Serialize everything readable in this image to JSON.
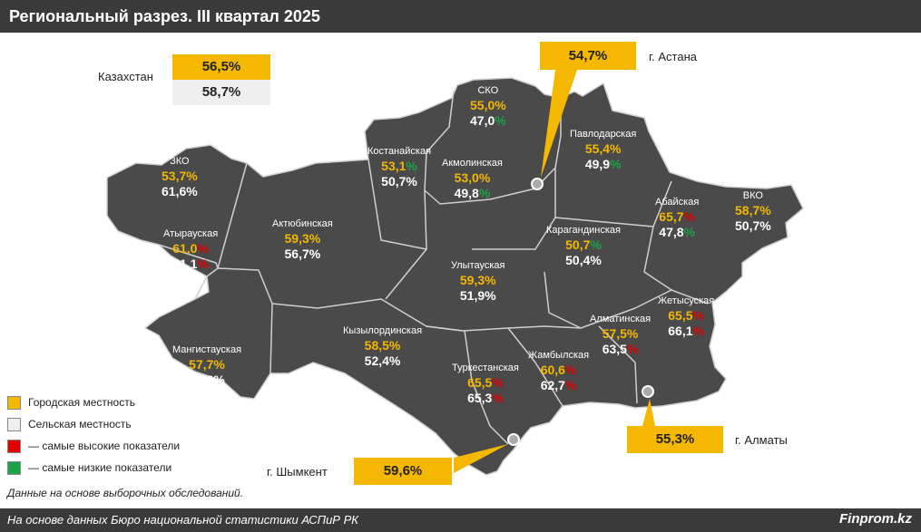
{
  "title": "Региональный разрез. III квартал 2025",
  "kazakhstan": {
    "label": "Казахстан",
    "urban": "56,5%",
    "rural": "58,7%"
  },
  "regions": [
    {
      "id": "sko",
      "name": "СКО",
      "urban": "55,0%",
      "rural": "47,0",
      "rural_mark": "%",
      "rural_mark_type": "low"
    },
    {
      "id": "pavlodar",
      "name": "Павлодарская",
      "urban": "55,4%",
      "rural": "49,9",
      "rural_mark": "%",
      "rural_mark_type": "low"
    },
    {
      "id": "kostanay",
      "name": "Костанайская",
      "urban": "53,1",
      "urban_mark": "%",
      "urban_mark_type": "low",
      "rural": "50,7%"
    },
    {
      "id": "akmola",
      "name": "Акмолинская",
      "urban": "53,0%",
      "rural": "49,8",
      "rural_mark": "%",
      "rural_mark_type": "low"
    },
    {
      "id": "zko",
      "name": "ЗКО",
      "urban": "53,7%",
      "rural": "61,6%"
    },
    {
      "id": "atyrau",
      "name": "Атырауская",
      "urban": "61,0",
      "urban_mark": "%",
      "urban_mark_type": "high",
      "rural": "61,1",
      "rural_mark": "%",
      "rural_mark_type": "high"
    },
    {
      "id": "aktobe",
      "name": "Актюбинская",
      "urban": "59,3%",
      "rural": "56,7%"
    },
    {
      "id": "vko",
      "name": "ВКО",
      "urban": "58,7%",
      "rural": "50,7%"
    },
    {
      "id": "abay",
      "name": "Абайская",
      "urban": "65,7",
      "urban_mark": "%",
      "urban_mark_type": "high",
      "rural": "47,8",
      "rural_mark": "%",
      "rural_mark_type": "low"
    },
    {
      "id": "karaganda",
      "name": "Карагандинская",
      "urban": "50,7",
      "urban_mark": "%",
      "urban_mark_type": "low",
      "rural": "50,4%"
    },
    {
      "id": "ulytau",
      "name": "Улытауская",
      "urban": "59,3%",
      "rural": "51,9%"
    },
    {
      "id": "zhetysu",
      "name": "Жетысуская",
      "urban": "65,5",
      "urban_mark": "%",
      "urban_mark_type": "high",
      "rural": "66,1",
      "rural_mark": "%",
      "rural_mark_type": "high"
    },
    {
      "id": "almaty_reg",
      "name": "Алматинская",
      "urban": "57,5%",
      "rural": "63,5",
      "rural_mark": "%",
      "rural_mark_type": "high"
    },
    {
      "id": "kyzylorda",
      "name": "Кызылординская",
      "urban": "58,5%",
      "rural": "52,4%"
    },
    {
      "id": "mangystau",
      "name": "Мангистауская",
      "urban": "57,7%",
      "rural": "58,6%"
    },
    {
      "id": "zhambyl",
      "name": "Жамбылская",
      "urban": "60,6",
      "urban_mark": "%",
      "urban_mark_type": "high",
      "rural": "62,7",
      "rural_mark": "%",
      "rural_mark_type": "high"
    },
    {
      "id": "turkestan",
      "name": "Туркестанская",
      "urban": "65,5",
      "urban_mark": "%",
      "urban_mark_type": "high",
      "rural": "65,3",
      "rural_mark": "%",
      "rural_mark_type": "high"
    }
  ],
  "cities": {
    "astana": {
      "name": "г. Астана",
      "value": "54,7%"
    },
    "almaty": {
      "name": "г. Алматы",
      "value": "55,3%"
    },
    "shymkent": {
      "name": "г. Шымкент",
      "value": "59,6%"
    }
  },
  "legend": [
    {
      "color": "#f5b800",
      "label": "Городская местность"
    },
    {
      "color": "#efefef",
      "label": "Сельская местность"
    },
    {
      "color": "#e00000",
      "label": "— самые высокие показатели"
    },
    {
      "color": "#1ba34a",
      "label": "— самые низкие показатели"
    }
  ],
  "note": "Данные на основе выборочных обследований.",
  "source": "На основе данных Бюро национальной статистики АСПиР РК",
  "brand": "Finprom.kz",
  "colors": {
    "urban": "#f5b800",
    "rural": "#efefef",
    "high": "#e00000",
    "low": "#1ba34a",
    "map": "#4a4a4a",
    "bar": "#3a3a3a"
  }
}
